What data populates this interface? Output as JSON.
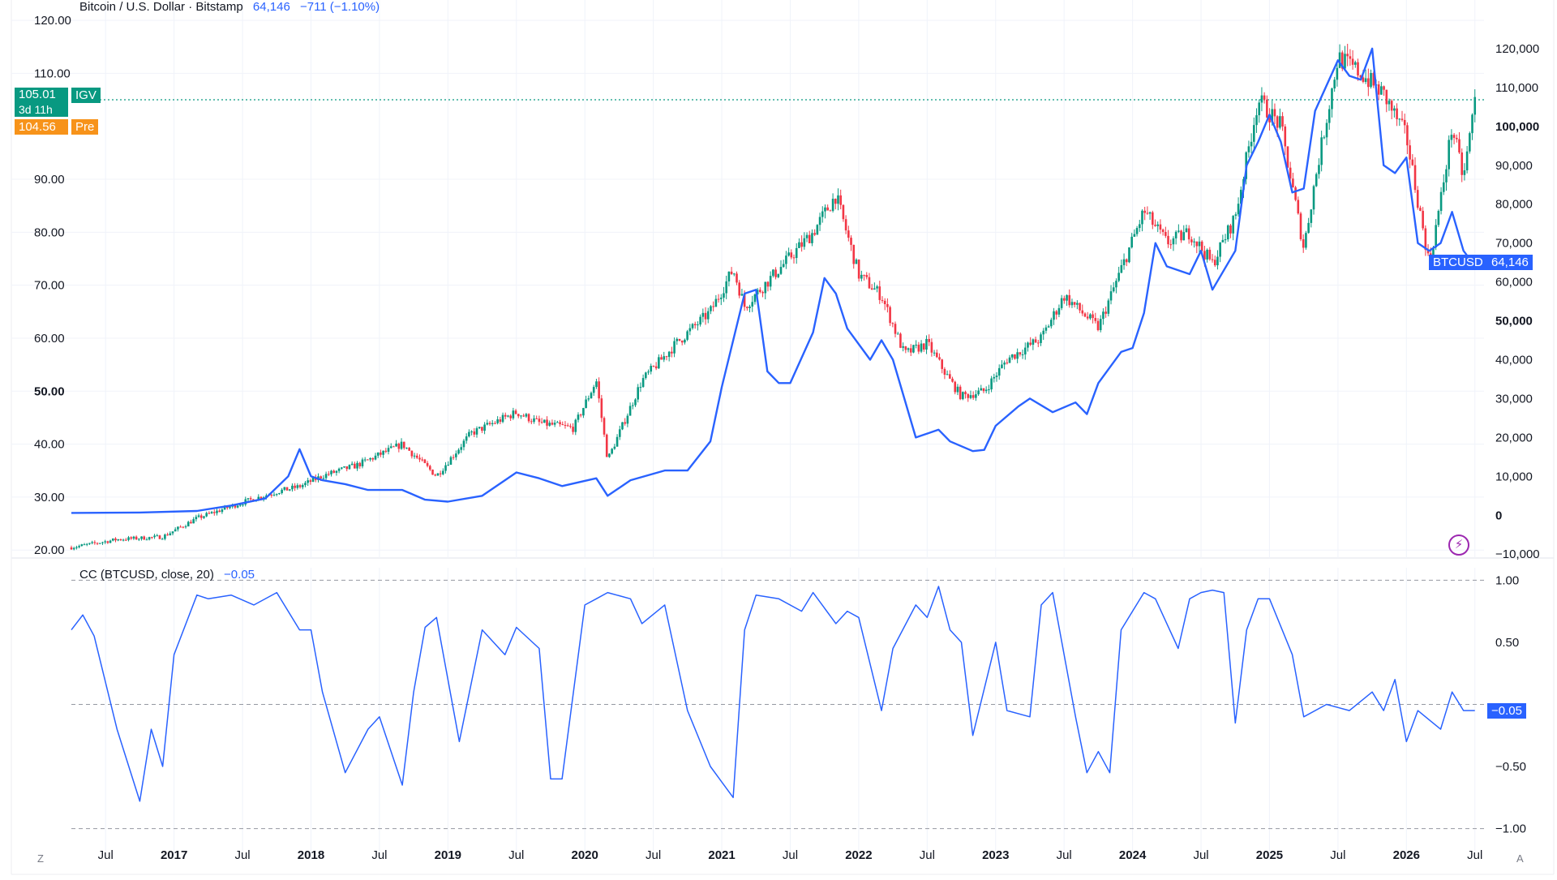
{
  "legend": {
    "symbol": "Bitcoin / U.S. Dollar · Bitstamp",
    "price": "64,146",
    "change": "−711 (−1.10%)"
  },
  "indicator": {
    "label": "CC (BTCUSD, close, 20)",
    "value": "−0.05"
  },
  "tags": {
    "igv_price": "105.01",
    "igv_countdown": "3d 11h",
    "igv_name": "IGV",
    "pre_price": "104.56",
    "pre_name": "Pre",
    "btc_name": "BTCUSD",
    "btc_price": "64,146",
    "cc_value": "−0.05"
  },
  "corners": {
    "left": "Z",
    "right": "A"
  },
  "colors": {
    "up": "#089981",
    "down": "#f23645",
    "btc_line": "#2962ff",
    "igv_tag": "#089981",
    "pre_tag": "#f7931a",
    "btc_tag": "#2962ff",
    "price_line": "#089981"
  },
  "chart_data": [
    {
      "type": "candlestick",
      "series": [
        {
          "name": "IGV"
        }
      ],
      "ylim": [
        18.5,
        122
      ],
      "y_ticks": [
        "120.00",
        "110.00",
        "90.00",
        "80.00",
        "70.00",
        "60.00",
        "50.00",
        "40.00",
        "30.00",
        "20.00"
      ],
      "y_ticks_values": [
        120,
        110,
        90,
        80,
        70,
        60,
        50,
        40,
        30,
        20
      ],
      "bold_tick": "50.00",
      "last_price": 105.01,
      "close_path": [
        [
          "2016-04",
          20.5
        ],
        [
          "2016-08",
          22
        ],
        [
          "2016-12",
          22.5
        ],
        [
          "2017-03",
          26
        ],
        [
          "2017-07",
          29
        ],
        [
          "2017-10",
          31
        ],
        [
          "2017-12",
          32
        ],
        [
          "2018-02",
          34
        ],
        [
          "2018-05",
          36
        ],
        [
          "2018-07",
          38
        ],
        [
          "2018-09",
          40
        ],
        [
          "2018-12",
          34
        ],
        [
          "2019-03",
          42
        ],
        [
          "2019-05",
          44
        ],
        [
          "2019-07",
          46
        ],
        [
          "2019-09",
          44
        ],
        [
          "2019-12",
          43
        ],
        [
          "2020-02",
          52
        ],
        [
          "2020-03",
          37
        ],
        [
          "2020-06",
          52
        ],
        [
          "2020-09",
          59
        ],
        [
          "2020-12",
          65
        ],
        [
          "2021-02",
          73
        ],
        [
          "2021-03",
          66
        ],
        [
          "2021-06",
          73
        ],
        [
          "2021-09",
          80
        ],
        [
          "2021-11",
          87
        ],
        [
          "2022-01",
          72
        ],
        [
          "2022-03",
          68
        ],
        [
          "2022-05",
          57
        ],
        [
          "2022-07",
          59
        ],
        [
          "2022-09",
          52
        ],
        [
          "2022-10",
          49
        ],
        [
          "2022-12",
          50
        ],
        [
          "2023-02",
          56
        ],
        [
          "2023-05",
          60
        ],
        [
          "2023-07",
          68
        ],
        [
          "2023-10",
          62
        ],
        [
          "2023-12",
          73
        ],
        [
          "2024-02",
          84
        ],
        [
          "2024-04",
          78
        ],
        [
          "2024-06",
          80
        ],
        [
          "2024-08",
          74
        ],
        [
          "2024-10",
          83
        ],
        [
          "2024-12",
          105
        ],
        [
          "2025-02",
          100
        ],
        [
          "2025-04",
          77
        ],
        [
          "2025-05",
          90
        ],
        [
          "2025-07",
          113
        ],
        [
          "2025-09",
          110
        ],
        [
          "2025-11",
          106
        ],
        [
          "2026-01",
          98
        ],
        [
          "2026-03",
          74
        ],
        [
          "2026-04",
          86
        ],
        [
          "2026-05",
          100
        ],
        [
          "2026-06",
          90
        ],
        [
          "2026-07",
          105
        ]
      ]
    },
    {
      "type": "line",
      "series": [
        {
          "name": "BTCUSD"
        }
      ],
      "ylim": [
        -11000,
        130000
      ],
      "y_ticks": [
        "120,000",
        "110,000",
        "100,000",
        "90,000",
        "80,000",
        "70,000",
        "60,000",
        "50,000",
        "40,000",
        "30,000",
        "20,000",
        "10,000",
        "0",
        "−10,000"
      ],
      "y_ticks_values": [
        120000,
        110000,
        100000,
        90000,
        80000,
        70000,
        60000,
        50000,
        40000,
        30000,
        20000,
        10000,
        0,
        -10000
      ],
      "bold_ticks": [
        "100,000",
        "50,000",
        "0"
      ],
      "last_price": 64146,
      "x": [
        "2016-04",
        "2016-10",
        "2017-03",
        "2017-06",
        "2017-09",
        "2017-11",
        "2017-12",
        "2018-01",
        "2018-02",
        "2018-04",
        "2018-06",
        "2018-09",
        "2018-11",
        "2019-01",
        "2019-04",
        "2019-06",
        "2019-07",
        "2019-09",
        "2019-11",
        "2020-02",
        "2020-03",
        "2020-05",
        "2020-08",
        "2020-10",
        "2020-12",
        "2021-01",
        "2021-03",
        "2021-04",
        "2021-05",
        "2021-06",
        "2021-07",
        "2021-09",
        "2021-10",
        "2021-11",
        "2021-12",
        "2022-02",
        "2022-03",
        "2022-04",
        "2022-05",
        "2022-06",
        "2022-08",
        "2022-09",
        "2022-11",
        "2022-12",
        "2023-01",
        "2023-03",
        "2023-04",
        "2023-06",
        "2023-08",
        "2023-09",
        "2023-10",
        "2023-12",
        "2024-01",
        "2024-02",
        "2024-03",
        "2024-04",
        "2024-06",
        "2024-07",
        "2024-08",
        "2024-09",
        "2024-10",
        "2024-11",
        "2024-12",
        "2025-01",
        "2025-02",
        "2025-03",
        "2025-04",
        "2025-05",
        "2025-07",
        "2025-08",
        "2025-09",
        "2025-10",
        "2025-11",
        "2025-12",
        "2026-01",
        "2026-02",
        "2026-03",
        "2026-04",
        "2026-05",
        "2026-06",
        "2026-07"
      ],
      "values": [
        600,
        700,
        1100,
        2500,
        4300,
        10000,
        17000,
        10000,
        9000,
        8000,
        6500,
        6500,
        4000,
        3500,
        5000,
        9000,
        11000,
        9500,
        7500,
        9500,
        5000,
        9000,
        11500,
        11500,
        19000,
        33000,
        57000,
        58000,
        37000,
        34000,
        34000,
        47000,
        61000,
        57000,
        48000,
        40000,
        45000,
        40000,
        30000,
        20000,
        22000,
        19000,
        16500,
        16800,
        23000,
        28000,
        30000,
        26500,
        29000,
        26000,
        34000,
        42000,
        43000,
        52000,
        70000,
        64000,
        62000,
        68000,
        58000,
        63000,
        68000,
        90000,
        96000,
        103000,
        96000,
        83000,
        84000,
        104000,
        117000,
        113000,
        112000,
        120000,
        90000,
        88000,
        92000,
        70000,
        68000,
        70000,
        78000,
        68000,
        64146
      ]
    },
    {
      "type": "line",
      "series": [
        {
          "name": "CC (BTCUSD, close, 20)"
        }
      ],
      "ylim": [
        -1.12,
        1.1
      ],
      "y_ticks": [
        "1.00",
        "0.50",
        "−0.50",
        "−1.00"
      ],
      "y_ticks_values": [
        1,
        0.5,
        -0.5,
        -1
      ],
      "reference_lines": [
        1,
        0,
        -1
      ],
      "last_value": -0.05,
      "x": [
        "2016-04",
        "2016-05",
        "2016-06",
        "2016-08",
        "2016-10",
        "2016-11",
        "2016-12",
        "2017-01",
        "2017-03",
        "2017-04",
        "2017-06",
        "2017-08",
        "2017-10",
        "2017-12",
        "2018-01",
        "2018-02",
        "2018-04",
        "2018-06",
        "2018-07",
        "2018-09",
        "2018-10",
        "2018-11",
        "2018-12",
        "2019-02",
        "2019-04",
        "2019-06",
        "2019-07",
        "2019-09",
        "2019-10",
        "2019-11",
        "2020-01",
        "2020-02",
        "2020-03",
        "2020-05",
        "2020-06",
        "2020-08",
        "2020-10",
        "2020-12",
        "2021-02",
        "2021-03",
        "2021-04",
        "2021-06",
        "2021-08",
        "2021-09",
        "2021-11",
        "2021-12",
        "2022-01",
        "2022-03",
        "2022-04",
        "2022-06",
        "2022-07",
        "2022-08",
        "2022-09",
        "2022-10",
        "2022-11",
        "2023-01",
        "2023-02",
        "2023-04",
        "2023-05",
        "2023-06",
        "2023-08",
        "2023-09",
        "2023-10",
        "2023-11",
        "2023-12",
        "2024-02",
        "2024-03",
        "2024-05",
        "2024-06",
        "2024-07",
        "2024-08",
        "2024-09",
        "2024-10",
        "2024-11",
        "2024-12",
        "2025-01",
        "2025-03",
        "2025-04",
        "2025-06",
        "2025-08",
        "2025-10",
        "2025-11",
        "2025-12",
        "2026-01",
        "2026-02",
        "2026-04",
        "2026-05",
        "2026-06",
        "2026-07"
      ],
      "values": [
        0.6,
        0.72,
        0.55,
        -0.2,
        -0.78,
        -0.2,
        -0.5,
        0.4,
        0.88,
        0.85,
        0.88,
        0.8,
        0.9,
        0.6,
        0.6,
        0.1,
        -0.55,
        -0.2,
        -0.1,
        -0.65,
        0.1,
        0.62,
        0.7,
        -0.3,
        0.6,
        0.4,
        0.62,
        0.45,
        -0.6,
        -0.6,
        0.8,
        0.85,
        0.9,
        0.85,
        0.65,
        0.8,
        -0.05,
        -0.5,
        -0.75,
        0.6,
        0.88,
        0.85,
        0.75,
        0.9,
        0.65,
        0.75,
        0.7,
        -0.05,
        0.45,
        0.8,
        0.7,
        0.95,
        0.6,
        0.5,
        -0.25,
        0.5,
        -0.05,
        -0.1,
        0.8,
        0.9,
        -0.1,
        -0.55,
        -0.38,
        -0.55,
        0.6,
        0.9,
        0.85,
        0.45,
        0.85,
        0.9,
        0.92,
        0.9,
        -0.15,
        0.6,
        0.85,
        0.85,
        0.4,
        -0.1,
        0.0,
        -0.05,
        0.1,
        -0.05,
        0.2,
        -0.3,
        -0.05,
        -0.2,
        0.1,
        -0.05,
        -0.05
      ],
      "values_note": "values shown are the rendered correlation curve levels across the date range"
    }
  ],
  "x_axis": {
    "labels": [
      {
        "t": "2016-07",
        "text": "Jul",
        "bold": false
      },
      {
        "t": "2017-01",
        "text": "2017",
        "bold": true
      },
      {
        "t": "2017-07",
        "text": "Jul",
        "bold": false
      },
      {
        "t": "2018-01",
        "text": "2018",
        "bold": true
      },
      {
        "t": "2018-07",
        "text": "Jul",
        "bold": false
      },
      {
        "t": "2019-01",
        "text": "2019",
        "bold": true
      },
      {
        "t": "2019-07",
        "text": "Jul",
        "bold": false
      },
      {
        "t": "2020-01",
        "text": "2020",
        "bold": true
      },
      {
        "t": "2020-07",
        "text": "Jul",
        "bold": false
      },
      {
        "t": "2021-01",
        "text": "2021",
        "bold": true
      },
      {
        "t": "2021-07",
        "text": "Jul",
        "bold": false
      },
      {
        "t": "2022-01",
        "text": "2022",
        "bold": true
      },
      {
        "t": "2022-07",
        "text": "Jul",
        "bold": false
      },
      {
        "t": "2023-01",
        "text": "2023",
        "bold": true
      },
      {
        "t": "2023-07",
        "text": "Jul",
        "bold": false
      },
      {
        "t": "2024-01",
        "text": "2024",
        "bold": true
      },
      {
        "t": "2024-07",
        "text": "Jul",
        "bold": false
      },
      {
        "t": "2025-01",
        "text": "2025",
        "bold": true
      },
      {
        "t": "2025-07",
        "text": "Jul",
        "bold": false
      },
      {
        "t": "2026-01",
        "text": "2026",
        "bold": true
      },
      {
        "t": "2026-07",
        "text": "Jul",
        "bold": false
      }
    ]
  }
}
